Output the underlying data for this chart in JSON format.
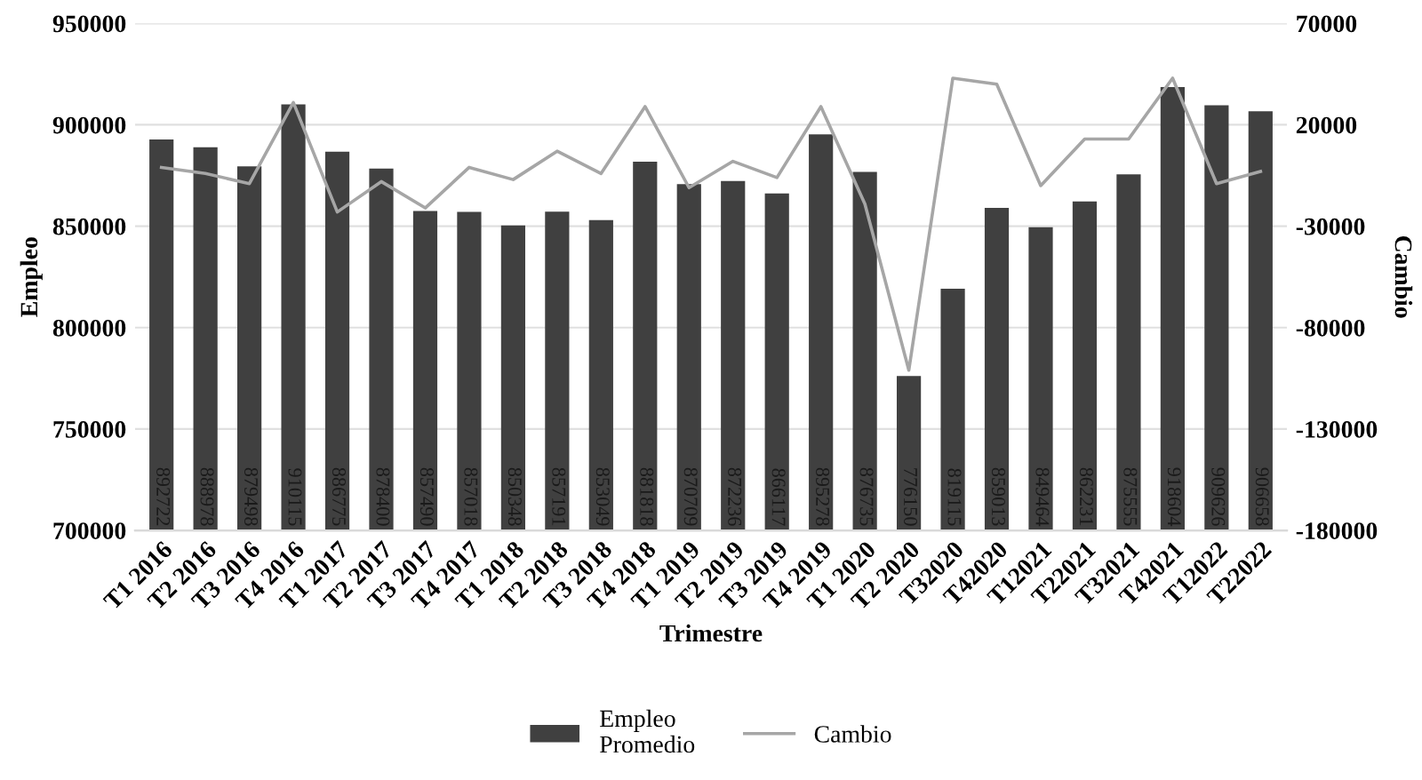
{
  "chart_data": {
    "type": "bar",
    "xlabel": "Trimestre",
    "ylabel": "Empleo",
    "y2label": "Cambio",
    "categories": [
      "T1 2016",
      "T2 2016",
      "T3 2016",
      "T4 2016",
      "T1 2017",
      "T2 2017",
      "T3 2017",
      "T4 2017",
      "T1 2018",
      "T2 2018",
      "T3 2018",
      "T4 2018",
      "T1 2019",
      "T2 2019",
      "T3 2019",
      "T4 2019",
      "T1 2020",
      "T2 2020",
      "T32020",
      "T42020",
      "T12021",
      "T22021",
      "T32021",
      "T42021",
      "T12022",
      "T22022"
    ],
    "series": [
      {
        "name": "Empleo Promedio",
        "color": "#404040",
        "values": [
          892722,
          888978,
          879498,
          910115,
          886775,
          878400,
          857490,
          857018,
          850348,
          857191,
          853049,
          881818,
          870709,
          872236,
          866117,
          895278,
          876735,
          776150,
          819115,
          859013,
          849464,
          862231,
          875555,
          918604,
          909626,
          906658
        ],
        "value_labels": [
          "892722",
          "888978",
          "879498",
          "910115",
          "886775",
          "878400",
          "857490",
          "857018",
          "850348",
          "857191",
          "853049",
          "881818",
          "870709",
          "872236",
          "866117",
          "895278",
          "876735",
          "776150",
          "819115",
          "859013",
          "849464",
          "862231",
          "875555",
          "918604",
          "909626",
          "906658"
        ]
      },
      {
        "name": "Cambio",
        "type": "line",
        "axis": "y2",
        "color": "#a6a6a6",
        "values": [
          -1000,
          -4000,
          -9000,
          31000,
          -23000,
          -8000,
          -21000,
          -1000,
          -7000,
          7000,
          -4000,
          29000,
          -11000,
          2000,
          -6000,
          29000,
          -19000,
          -101000,
          43000,
          40000,
          -10000,
          13000,
          13000,
          43000,
          -9000,
          -3000
        ]
      }
    ],
    "ylim": [
      700000,
      950000
    ],
    "yticks": [
      700000,
      750000,
      800000,
      850000,
      900000,
      950000
    ],
    "y2lim": [
      -180000,
      70000
    ],
    "y2ticks": [
      -180000,
      -130000,
      -80000,
      -30000,
      20000,
      70000
    ],
    "grid": "y",
    "legend": "bottom",
    "line_style": "solid",
    "marker": "none"
  }
}
